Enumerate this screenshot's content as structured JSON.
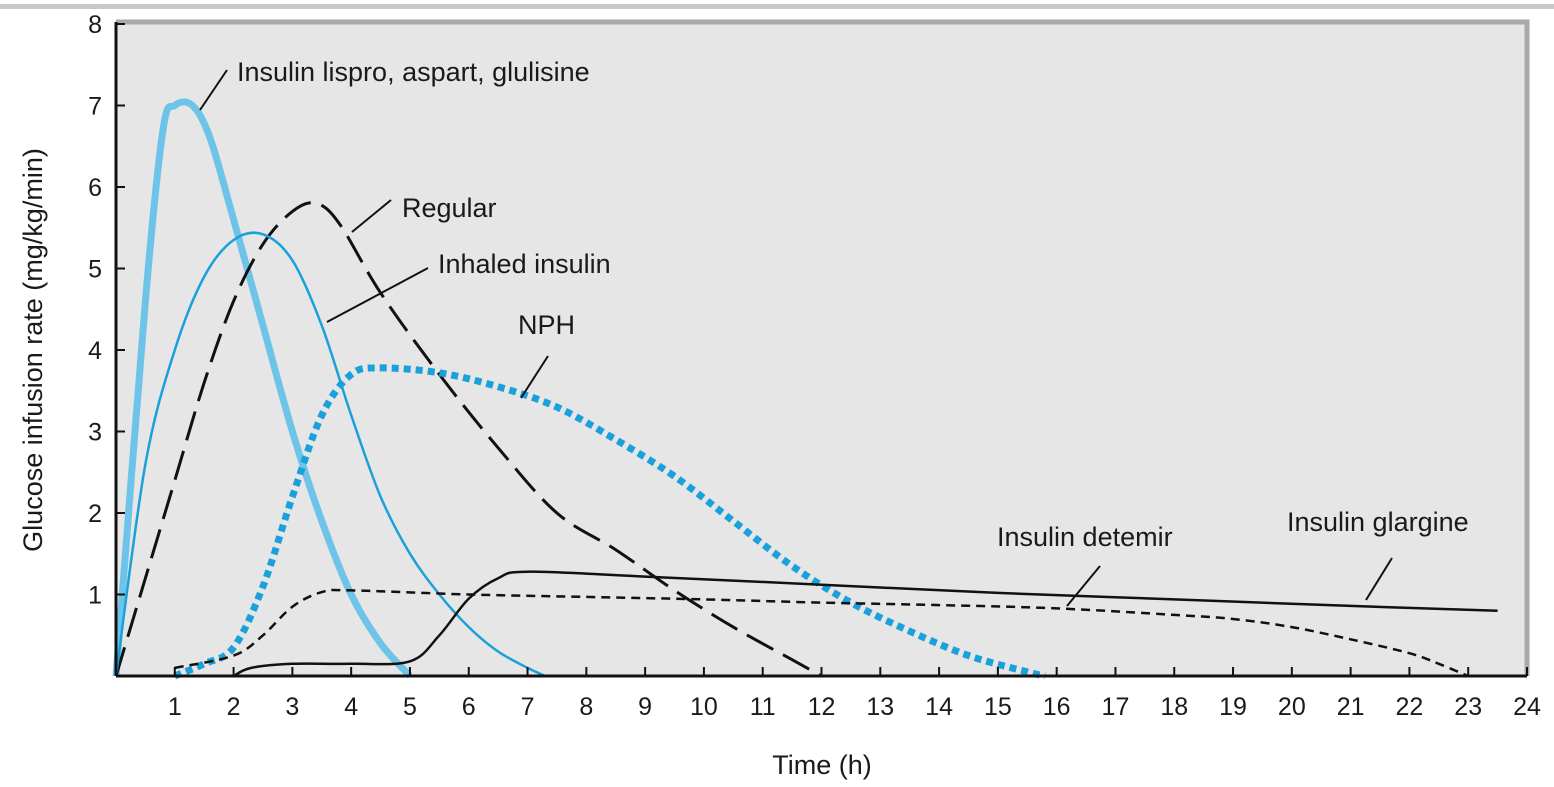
{
  "chart_data": {
    "type": "line",
    "title": "",
    "xlabel": "Time (h)",
    "ylabel": "Glucose infusion rate (mg/kg/min)",
    "xlim": [
      0,
      24
    ],
    "ylim": [
      0,
      8
    ],
    "x_ticks": [
      1,
      2,
      3,
      4,
      5,
      6,
      7,
      8,
      9,
      10,
      11,
      12,
      13,
      14,
      15,
      16,
      17,
      18,
      19,
      20,
      21,
      22,
      23,
      24
    ],
    "y_ticks": [
      1,
      2,
      3,
      4,
      5,
      6,
      7,
      8
    ],
    "grid": false,
    "legend": "none",
    "background_color": "#e6e6e6",
    "series": [
      {
        "name": "Insulin lispro, aspart, glulisine",
        "color": "#6ec4e8",
        "style": "thick-solid",
        "points": [
          [
            0,
            0
          ],
          [
            0.5,
            4.6
          ],
          [
            0.8,
            6.7
          ],
          [
            1.0,
            7.0
          ],
          [
            1.3,
            7.0
          ],
          [
            1.6,
            6.6
          ],
          [
            2.0,
            5.6
          ],
          [
            2.5,
            4.3
          ],
          [
            3.0,
            3.0
          ],
          [
            3.5,
            1.9
          ],
          [
            4.0,
            1.0
          ],
          [
            4.5,
            0.4
          ],
          [
            5.0,
            0
          ]
        ]
      },
      {
        "name": "Regular",
        "color": "#111111",
        "style": "long-dash",
        "points": [
          [
            0,
            0
          ],
          [
            0.5,
            1.2
          ],
          [
            1.0,
            2.4
          ],
          [
            1.5,
            3.6
          ],
          [
            2.0,
            4.6
          ],
          [
            2.5,
            5.3
          ],
          [
            3.0,
            5.7
          ],
          [
            3.4,
            5.8
          ],
          [
            3.8,
            5.55
          ],
          [
            4.5,
            4.7
          ],
          [
            5.5,
            3.7
          ],
          [
            6.5,
            2.8
          ],
          [
            7.5,
            2.0
          ],
          [
            8.5,
            1.55
          ],
          [
            9.5,
            1.05
          ],
          [
            10.5,
            0.6
          ],
          [
            11.5,
            0.2
          ],
          [
            12.0,
            0
          ]
        ]
      },
      {
        "name": "Inhaled insulin",
        "color": "#1aa1dc",
        "style": "solid",
        "points": [
          [
            0,
            0
          ],
          [
            0.5,
            2.6
          ],
          [
            1.0,
            4.0
          ],
          [
            1.5,
            4.9
          ],
          [
            2.0,
            5.35
          ],
          [
            2.5,
            5.42
          ],
          [
            3.0,
            5.1
          ],
          [
            3.5,
            4.3
          ],
          [
            4.0,
            3.2
          ],
          [
            4.5,
            2.2
          ],
          [
            5.0,
            1.5
          ],
          [
            5.5,
            1.0
          ],
          [
            6.0,
            0.6
          ],
          [
            6.5,
            0.3
          ],
          [
            7.0,
            0.1
          ],
          [
            7.3,
            0
          ]
        ]
      },
      {
        "name": "NPH",
        "color": "#1aa1dc",
        "style": "thick-dotted",
        "points": [
          [
            1,
            0
          ],
          [
            1.5,
            0.15
          ],
          [
            2.0,
            0.35
          ],
          [
            2.5,
            1.1
          ],
          [
            3.0,
            2.2
          ],
          [
            3.5,
            3.2
          ],
          [
            4.0,
            3.7
          ],
          [
            4.5,
            3.78
          ],
          [
            5.5,
            3.72
          ],
          [
            6.5,
            3.55
          ],
          [
            7.5,
            3.3
          ],
          [
            8.5,
            2.9
          ],
          [
            9.5,
            2.45
          ],
          [
            10.5,
            1.9
          ],
          [
            11.5,
            1.35
          ],
          [
            12.5,
            0.9
          ],
          [
            13.5,
            0.55
          ],
          [
            14.5,
            0.25
          ],
          [
            15.5,
            0.05
          ],
          [
            15.8,
            0
          ]
        ]
      },
      {
        "name": "Insulin detemir",
        "color": "#111111",
        "style": "short-dash",
        "points": [
          [
            1,
            0.1
          ],
          [
            2.0,
            0.25
          ],
          [
            2.5,
            0.5
          ],
          [
            3.0,
            0.85
          ],
          [
            3.5,
            1.03
          ],
          [
            4.0,
            1.05
          ],
          [
            6.0,
            1.0
          ],
          [
            8.0,
            0.97
          ],
          [
            10.0,
            0.94
          ],
          [
            12.0,
            0.9
          ],
          [
            14.0,
            0.87
          ],
          [
            16.0,
            0.83
          ],
          [
            18.0,
            0.75
          ],
          [
            19.0,
            0.7
          ],
          [
            20.0,
            0.6
          ],
          [
            21.0,
            0.45
          ],
          [
            22.0,
            0.28
          ],
          [
            22.5,
            0.15
          ],
          [
            23.0,
            0
          ]
        ]
      },
      {
        "name": "Insulin glargine",
        "color": "#111111",
        "style": "solid",
        "points": [
          [
            2,
            0
          ],
          [
            2.3,
            0.1
          ],
          [
            3.0,
            0.15
          ],
          [
            4.0,
            0.15
          ],
          [
            5.0,
            0.18
          ],
          [
            5.5,
            0.5
          ],
          [
            6.0,
            0.95
          ],
          [
            6.5,
            1.2
          ],
          [
            7.0,
            1.28
          ],
          [
            9.0,
            1.22
          ],
          [
            12.0,
            1.12
          ],
          [
            15.0,
            1.02
          ],
          [
            18.0,
            0.94
          ],
          [
            21.0,
            0.86
          ],
          [
            23.5,
            0.8
          ]
        ]
      }
    ]
  }
}
